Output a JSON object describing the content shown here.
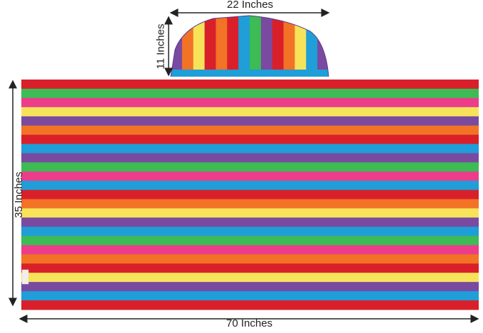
{
  "dimensions": {
    "width": "70 Inches",
    "height": "35 Inches",
    "hood_width": "22 Inches",
    "hood_height": "11 Inches"
  },
  "colors": {
    "red": "#d9202a",
    "green": "#3dbb55",
    "yellow": "#f7e35a",
    "orange": "#f27226",
    "purple": "#7a4aa0",
    "blue": "#1f9ed8",
    "pink": "#ec3d8a",
    "arrow": "#222222"
  },
  "towel_stripes": [
    "red",
    "green",
    "pink",
    "yellow",
    "purple",
    "orange",
    "red",
    "blue",
    "purple",
    "green",
    "pink",
    "blue",
    "red",
    "orange",
    "yellow",
    "purple",
    "blue",
    "green",
    "pink",
    "orange",
    "red",
    "yellow",
    "purple",
    "blue",
    "red"
  ],
  "hood_stripes": [
    "purple",
    "orange",
    "yellow",
    "red",
    "orange",
    "red",
    "blue",
    "green",
    "purple",
    "red",
    "orange",
    "yellow",
    "blue",
    "purple"
  ]
}
